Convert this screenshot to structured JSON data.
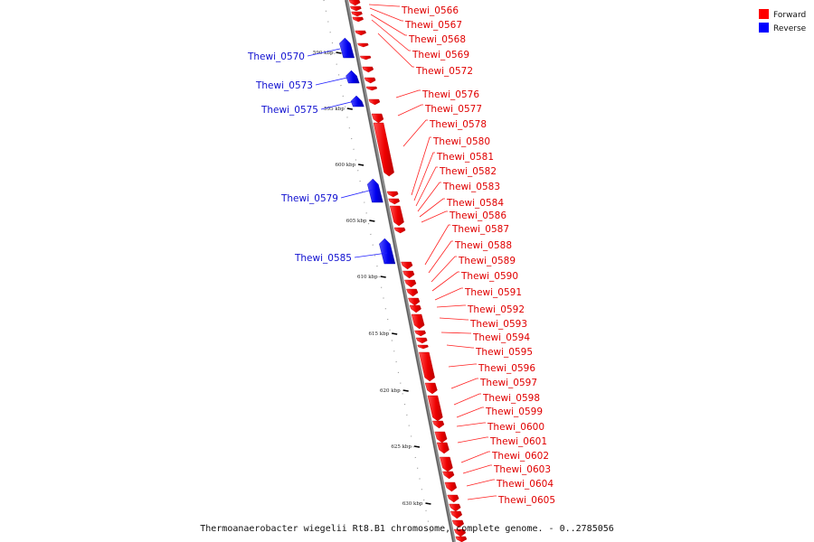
{
  "caption": "Thermoanaerobacter wiegelii Rt8.B1 chromosome, complete genome. - 0..2785056",
  "legend": {
    "forward": {
      "label": "Forward",
      "color": "#ff0000"
    },
    "reverse": {
      "label": "Reverse",
      "color": "#0000ff"
    }
  },
  "ticks": [
    "590 kbp",
    "595 kbp",
    "600 kbp",
    "605 kbp",
    "610 kbp",
    "615 kbp",
    "620 kbp",
    "625 kbp",
    "630 kbp"
  ],
  "forward_genes": [
    "Thewi_0566",
    "Thewi_0567",
    "Thewi_0568",
    "Thewi_0569",
    "Thewi_0572",
    "Thewi_0576",
    "Thewi_0577",
    "Thewi_0578",
    "Thewi_0580",
    "Thewi_0581",
    "Thewi_0582",
    "Thewi_0583",
    "Thewi_0584",
    "Thewi_0586",
    "Thewi_0587",
    "Thewi_0588",
    "Thewi_0589",
    "Thewi_0590",
    "Thewi_0591",
    "Thewi_0592",
    "Thewi_0593",
    "Thewi_0594",
    "Thewi_0595",
    "Thewi_0596",
    "Thewi_0597",
    "Thewi_0598",
    "Thewi_0599",
    "Thewi_0600",
    "Thewi_0601",
    "Thewi_0602",
    "Thewi_0603",
    "Thewi_0604",
    "Thewi_0605"
  ],
  "reverse_genes": [
    "Thewi_0570",
    "Thewi_0573",
    "Thewi_0575",
    "Thewi_0579",
    "Thewi_0585"
  ]
}
